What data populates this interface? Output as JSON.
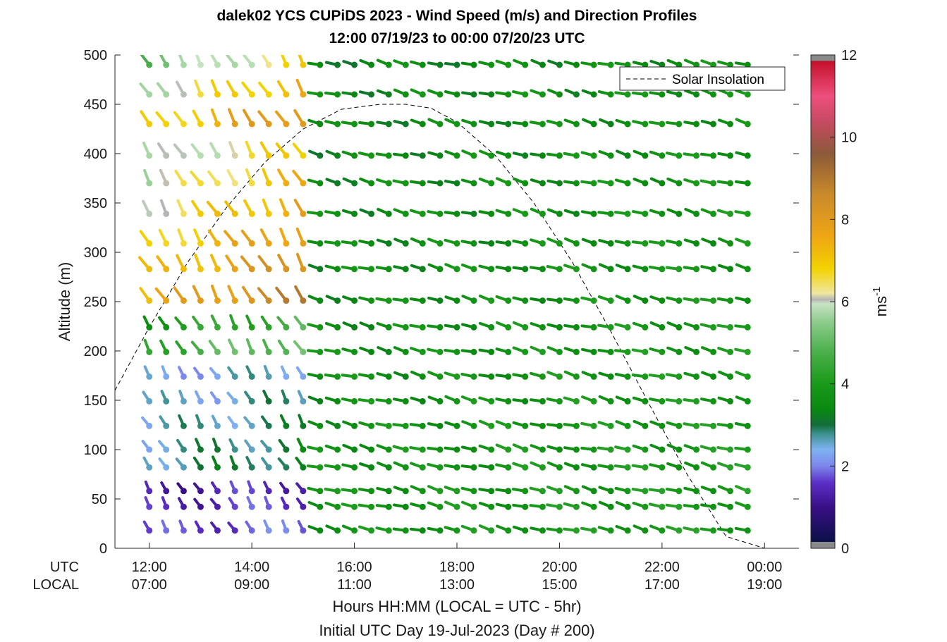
{
  "chart_data": {
    "type": "wind-barb-profile",
    "title_line1": "dalek02 YCS CUPiDS 2023 - Wind Speed (m/s) and Direction Profiles",
    "title_line2": "12:00 07/19/23 to 00:00 07/20/23  UTC",
    "ylabel": "Altitude (m)",
    "xlabel": "Hours HH:MM  (LOCAL = UTC - 5hr)",
    "xlabel2": "Initial UTC Day 19-Jul-2023 (Day # 200)",
    "row_label_utc": "UTC",
    "row_label_local": "LOCAL",
    "ylim": [
      0,
      500
    ],
    "yticks": [
      "0",
      "50",
      "100",
      "150",
      "200",
      "250",
      "300",
      "350",
      "400",
      "450",
      "500"
    ],
    "x_hours_utc": [
      12,
      14,
      16,
      18,
      20,
      22,
      24
    ],
    "xticks_utc": [
      "12:00",
      "14:00",
      "16:00",
      "18:00",
      "20:00",
      "22:00",
      "00:00"
    ],
    "xticks_local": [
      "07:00",
      "09:00",
      "11:00",
      "13:00",
      "15:00",
      "17:00",
      "19:00"
    ],
    "xlim_hours": [
      11.33,
      24.67
    ],
    "colorbar": {
      "label": "ms",
      "label_exponent": "-1",
      "range": [
        0,
        12
      ],
      "ticks": [
        "0",
        "2",
        "4",
        "6",
        "8",
        "10",
        "12"
      ],
      "stops": [
        {
          "v": 0.0,
          "c": "#8a8a8a"
        },
        {
          "v": 0.15,
          "c": "#8a8a8a"
        },
        {
          "v": 0.16,
          "c": "#0b1048"
        },
        {
          "v": 1.0,
          "c": "#3a0f86"
        },
        {
          "v": 1.6,
          "c": "#5d30c8"
        },
        {
          "v": 2.0,
          "c": "#7c86ea"
        },
        {
          "v": 2.4,
          "c": "#7fb2f2"
        },
        {
          "v": 2.8,
          "c": "#3a8f8a"
        },
        {
          "v": 3.0,
          "c": "#136e3a"
        },
        {
          "v": 3.4,
          "c": "#0a8a10"
        },
        {
          "v": 4.0,
          "c": "#1a9a1a"
        },
        {
          "v": 4.8,
          "c": "#4db04d"
        },
        {
          "v": 5.5,
          "c": "#8ccb8c"
        },
        {
          "v": 5.95,
          "c": "#c8e3c3"
        },
        {
          "v": 6.05,
          "c": "#b5b5b5"
        },
        {
          "v": 6.2,
          "c": "#f0e6a0"
        },
        {
          "v": 6.8,
          "c": "#f2d200"
        },
        {
          "v": 7.6,
          "c": "#eea515"
        },
        {
          "v": 8.6,
          "c": "#c98a2a"
        },
        {
          "v": 9.6,
          "c": "#8b5a3a"
        },
        {
          "v": 10.4,
          "c": "#c84a63"
        },
        {
          "v": 11.0,
          "c": "#ee4f7d"
        },
        {
          "v": 11.85,
          "c": "#c4102a"
        },
        {
          "v": 11.86,
          "c": "#8a8a8a"
        },
        {
          "v": 12.0,
          "c": "#8a8a8a"
        }
      ]
    },
    "legend": {
      "entries": [
        "Solar Insolation"
      ],
      "placement": "top-right"
    },
    "solar_curve": {
      "type": "line",
      "style": "dashed",
      "color": "#000000",
      "x": [
        11.33,
        12,
        12.75,
        13.5,
        14.25,
        15,
        15.75,
        16.5,
        17,
        17.5,
        18,
        18.75,
        19.5,
        20.25,
        21,
        21.75,
        22.5,
        23.25,
        24,
        24.25,
        24.5
      ],
      "y": [
        160,
        224,
        290,
        345,
        391,
        425,
        445,
        450,
        450,
        446,
        432,
        398,
        350,
        290,
        220,
        146,
        74,
        12,
        0,
        0,
        0
      ]
    },
    "wind_times_utc": [
      12,
      12.33,
      12.67,
      13,
      13.33,
      13.67,
      14,
      14.33,
      14.67,
      15,
      15.33,
      15.67,
      16,
      16.33,
      16.67,
      17,
      17.33,
      17.67,
      18,
      18.33,
      18.67,
      19,
      19.33,
      19.67,
      20,
      20.33,
      20.67,
      21,
      21.33,
      21.67,
      22,
      22.33,
      22.67,
      23,
      23.33,
      23.67
    ],
    "wind_altitudes_m": [
      18,
      42,
      58,
      82,
      100,
      124,
      149,
      174,
      199,
      224,
      251,
      283,
      309,
      339,
      370,
      398,
      430,
      460,
      490
    ],
    "wind_segments_speed_ms": [
      {
        "t0": 12.0,
        "t1": 15.1,
        "z0": 0,
        "z1": 60,
        "s0": 2.0,
        "s1": 1.2
      },
      {
        "t0": 12.0,
        "t1": 15.1,
        "z0": 80,
        "z1": 175,
        "s0": 3.2,
        "s1": 2.2
      },
      {
        "t0": 12.0,
        "t1": 15.1,
        "z0": 190,
        "z1": 240,
        "s0": 5.5,
        "s1": 3.5
      },
      {
        "t0": 12.0,
        "t1": 15.1,
        "z0": 250,
        "z1": 400,
        "s0": 8.8,
        "s1": 5.5
      },
      {
        "t0": 12.0,
        "t1": 15.1,
        "z0": 420,
        "z1": 500,
        "s0": 8.6,
        "s1": 4.8
      },
      {
        "t0": 15.3,
        "t1": 23.7,
        "z0": 0,
        "z1": 500,
        "s0": 4.0,
        "s1": 3.4
      }
    ]
  }
}
